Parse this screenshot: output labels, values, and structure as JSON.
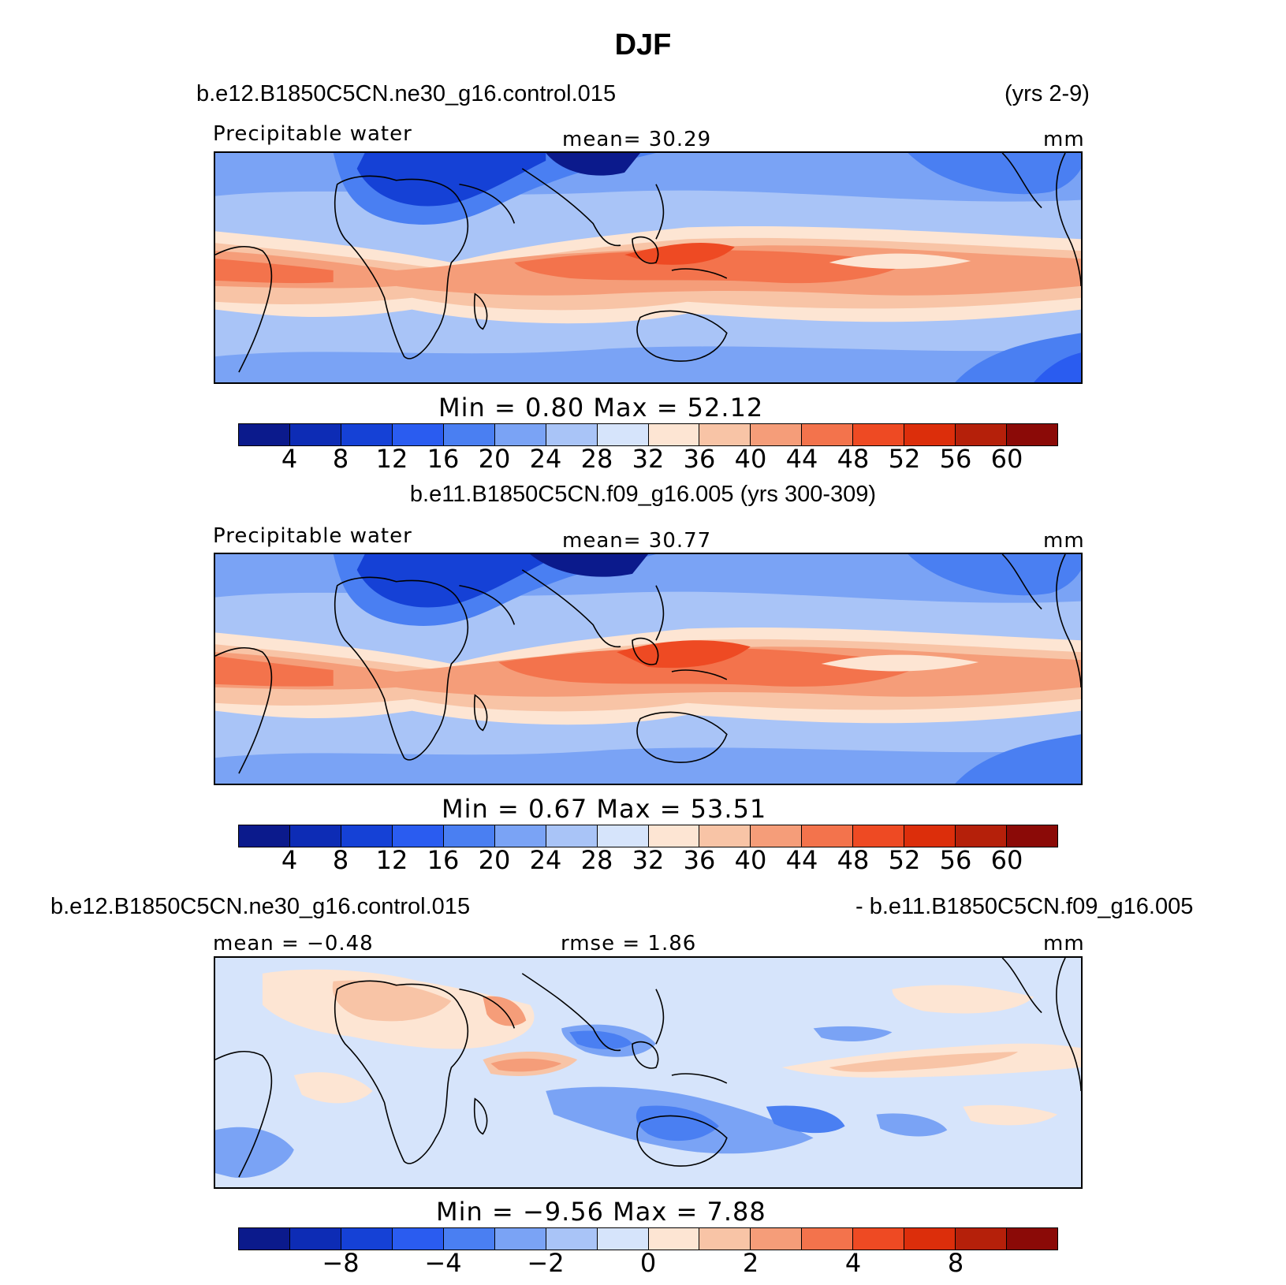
{
  "title": "DJF",
  "palette_seq": [
    "#0b1a8c",
    "#0d2cb5",
    "#1541d6",
    "#2a5cf0",
    "#4a7ff2",
    "#7aa3f5",
    "#a9c4f7",
    "#d6e4fb",
    "#fde5d3",
    "#f8c4a6",
    "#f59d79",
    "#f3734c",
    "#ee4a23",
    "#dc2e0b",
    "#b5200a",
    "#8b0a07"
  ],
  "panels": [
    {
      "case_label": "b.e12.B1850C5CN.ne30_g16.control.015",
      "years": "(yrs 2-9)",
      "variable": "Precipitable water",
      "mean_label": "mean=  30.29",
      "units": "mm",
      "minmax": "Min =    0.80  Max =   52.12",
      "ticks": [
        "4",
        "8",
        "12",
        "16",
        "20",
        "24",
        "28",
        "32",
        "36",
        "40",
        "44",
        "48",
        "52",
        "56",
        "60"
      ]
    },
    {
      "case_label": "b.e11.B1850C5CN.f09_g16.005 (yrs 300-309)",
      "variable": "Precipitable water",
      "mean_label": "mean=  30.77",
      "units": "mm",
      "minmax": "Min =    0.67  Max =   53.51",
      "ticks": [
        "4",
        "8",
        "12",
        "16",
        "20",
        "24",
        "28",
        "32",
        "36",
        "40",
        "44",
        "48",
        "52",
        "56",
        "60"
      ]
    },
    {
      "case_left": "b.e12.B1850C5CN.ne30_g16.control.015",
      "case_right": "- b.e11.B1850C5CN.f09_g16.005",
      "mean_label": "mean =  −0.48",
      "rmse_label": "rmse =    1.86",
      "units": "mm",
      "minmax": "Min =  −9.56  Max =    7.88",
      "ticks": [
        "−8",
        "−4",
        "−2",
        "0",
        "2",
        "4",
        "8"
      ]
    }
  ]
}
